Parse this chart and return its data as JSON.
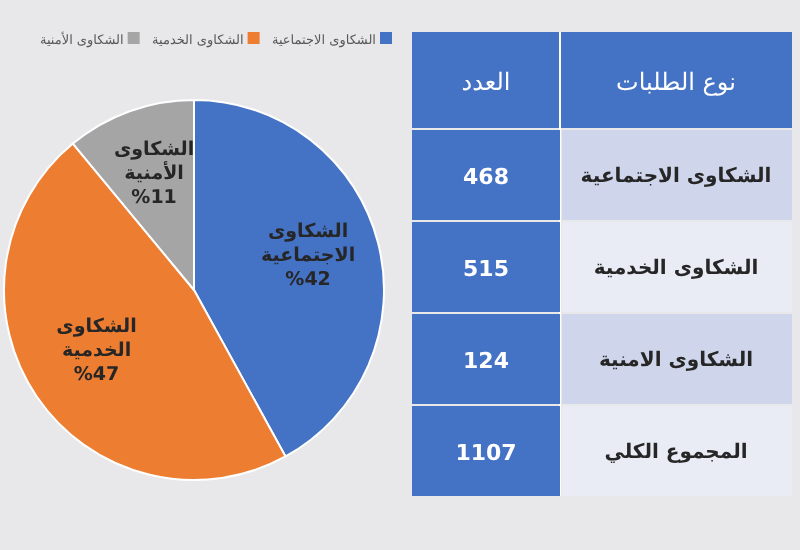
{
  "chart_data": [
    {
      "type": "pie",
      "categories": [
        "الشكاوى الاجتماعية",
        "الشكاوى الخدمية",
        "الشكاوى الأمنية"
      ],
      "values": [
        42,
        47,
        11
      ],
      "colors": [
        "#4472c4",
        "#ed7d31",
        "#a5a5a5"
      ],
      "value_labels": [
        "%42",
        "%47",
        "%11"
      ],
      "legend": "top"
    },
    {
      "type": "other",
      "annotations": [
        "نوع الطلبات",
        "العدد"
      ],
      "categories": [
        "الشكاوى الاجتماعية",
        "الشكاوى الخدمية",
        "الشكاوى الامنية",
        "المجموع الكلي"
      ],
      "values": [
        468,
        515,
        124,
        1107
      ],
      "data_labels": true
    }
  ]
}
